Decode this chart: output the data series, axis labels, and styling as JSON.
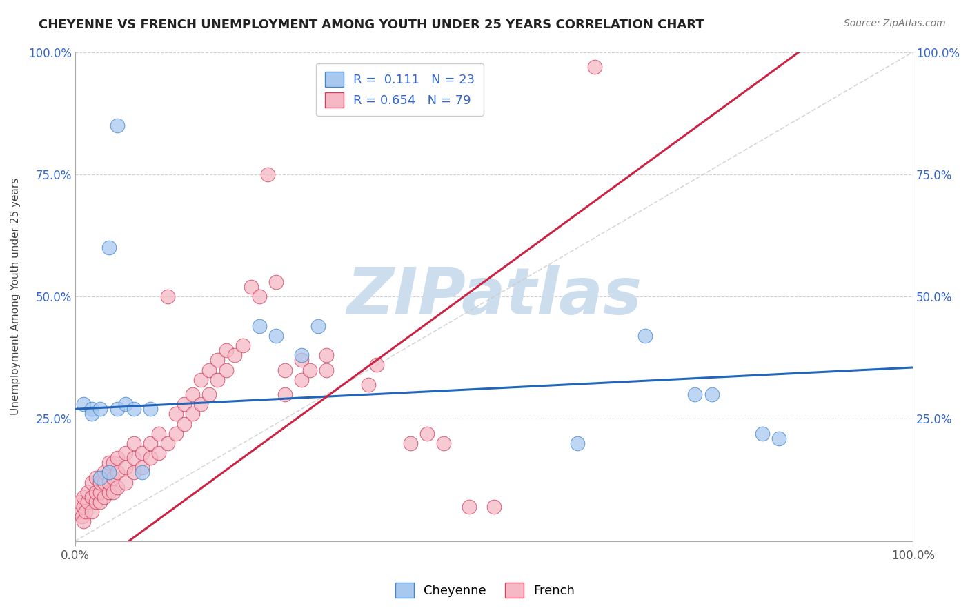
{
  "title": "CHEYENNE VS FRENCH UNEMPLOYMENT AMONG YOUTH UNDER 25 YEARS CORRELATION CHART",
  "source_text": "Source: ZipAtlas.com",
  "ylabel": "Unemployment Among Youth under 25 years",
  "xlim": [
    0.0,
    1.0
  ],
  "ylim": [
    0.0,
    1.0
  ],
  "ytick_labels": [
    "25.0%",
    "50.0%",
    "75.0%",
    "100.0%"
  ],
  "ytick_values": [
    0.25,
    0.5,
    0.75,
    1.0
  ],
  "watermark": "ZIPatlas",
  "watermark_color": "#ccdded",
  "legend_r_cheyenne": "0.111",
  "legend_n_cheyenne": "23",
  "legend_r_french": "0.654",
  "legend_n_french": "79",
  "cheyenne_color": "#a8c8f0",
  "french_color": "#f5b8c4",
  "cheyenne_edge_color": "#4488cc",
  "french_edge_color": "#d04060",
  "cheyenne_line_color": "#2266bb",
  "french_line_color": "#cc2244",
  "diagonal_line_color": "#cccccc",
  "cheyenne_line": [
    [
      0.0,
      0.27
    ],
    [
      1.0,
      0.355
    ]
  ],
  "french_line": [
    [
      0.0,
      -0.08
    ],
    [
      1.0,
      1.17
    ]
  ],
  "diagonal_line": [
    [
      0.0,
      0.0
    ],
    [
      1.0,
      1.0
    ]
  ],
  "cheyenne_scatter": [
    [
      0.01,
      0.28
    ],
    [
      0.02,
      0.27
    ],
    [
      0.02,
      0.26
    ],
    [
      0.03,
      0.27
    ],
    [
      0.03,
      0.13
    ],
    [
      0.04,
      0.14
    ],
    [
      0.05,
      0.27
    ],
    [
      0.06,
      0.28
    ],
    [
      0.07,
      0.27
    ],
    [
      0.08,
      0.14
    ],
    [
      0.09,
      0.27
    ],
    [
      0.04,
      0.6
    ],
    [
      0.05,
      0.85
    ],
    [
      0.22,
      0.44
    ],
    [
      0.24,
      0.42
    ],
    [
      0.27,
      0.38
    ],
    [
      0.29,
      0.44
    ],
    [
      0.68,
      0.42
    ],
    [
      0.74,
      0.3
    ],
    [
      0.76,
      0.3
    ],
    [
      0.82,
      0.22
    ],
    [
      0.6,
      0.2
    ],
    [
      0.84,
      0.21
    ]
  ],
  "french_scatter": [
    [
      0.005,
      0.06
    ],
    [
      0.005,
      0.08
    ],
    [
      0.008,
      0.05
    ],
    [
      0.01,
      0.07
    ],
    [
      0.01,
      0.04
    ],
    [
      0.01,
      0.09
    ],
    [
      0.012,
      0.06
    ],
    [
      0.015,
      0.08
    ],
    [
      0.015,
      0.1
    ],
    [
      0.02,
      0.06
    ],
    [
      0.02,
      0.09
    ],
    [
      0.02,
      0.12
    ],
    [
      0.025,
      0.08
    ],
    [
      0.025,
      0.1
    ],
    [
      0.025,
      0.13
    ],
    [
      0.03,
      0.08
    ],
    [
      0.03,
      0.1
    ],
    [
      0.03,
      0.12
    ],
    [
      0.035,
      0.09
    ],
    [
      0.035,
      0.12
    ],
    [
      0.035,
      0.14
    ],
    [
      0.04,
      0.1
    ],
    [
      0.04,
      0.12
    ],
    [
      0.04,
      0.14
    ],
    [
      0.04,
      0.16
    ],
    [
      0.045,
      0.1
    ],
    [
      0.045,
      0.13
    ],
    [
      0.045,
      0.16
    ],
    [
      0.05,
      0.11
    ],
    [
      0.05,
      0.14
    ],
    [
      0.05,
      0.17
    ],
    [
      0.06,
      0.12
    ],
    [
      0.06,
      0.15
    ],
    [
      0.06,
      0.18
    ],
    [
      0.07,
      0.14
    ],
    [
      0.07,
      0.17
    ],
    [
      0.07,
      0.2
    ],
    [
      0.08,
      0.15
    ],
    [
      0.08,
      0.18
    ],
    [
      0.09,
      0.17
    ],
    [
      0.09,
      0.2
    ],
    [
      0.1,
      0.18
    ],
    [
      0.1,
      0.22
    ],
    [
      0.11,
      0.2
    ],
    [
      0.11,
      0.5
    ],
    [
      0.12,
      0.22
    ],
    [
      0.12,
      0.26
    ],
    [
      0.13,
      0.24
    ],
    [
      0.13,
      0.28
    ],
    [
      0.14,
      0.26
    ],
    [
      0.14,
      0.3
    ],
    [
      0.15,
      0.28
    ],
    [
      0.15,
      0.33
    ],
    [
      0.16,
      0.3
    ],
    [
      0.16,
      0.35
    ],
    [
      0.17,
      0.33
    ],
    [
      0.17,
      0.37
    ],
    [
      0.18,
      0.35
    ],
    [
      0.18,
      0.39
    ],
    [
      0.19,
      0.38
    ],
    [
      0.2,
      0.4
    ],
    [
      0.21,
      0.52
    ],
    [
      0.22,
      0.5
    ],
    [
      0.23,
      0.75
    ],
    [
      0.24,
      0.53
    ],
    [
      0.25,
      0.3
    ],
    [
      0.25,
      0.35
    ],
    [
      0.27,
      0.33
    ],
    [
      0.27,
      0.37
    ],
    [
      0.28,
      0.35
    ],
    [
      0.3,
      0.38
    ],
    [
      0.3,
      0.35
    ],
    [
      0.35,
      0.32
    ],
    [
      0.36,
      0.36
    ],
    [
      0.4,
      0.2
    ],
    [
      0.42,
      0.22
    ],
    [
      0.44,
      0.2
    ],
    [
      0.47,
      0.07
    ],
    [
      0.5,
      0.07
    ],
    [
      0.62,
      0.97
    ]
  ]
}
